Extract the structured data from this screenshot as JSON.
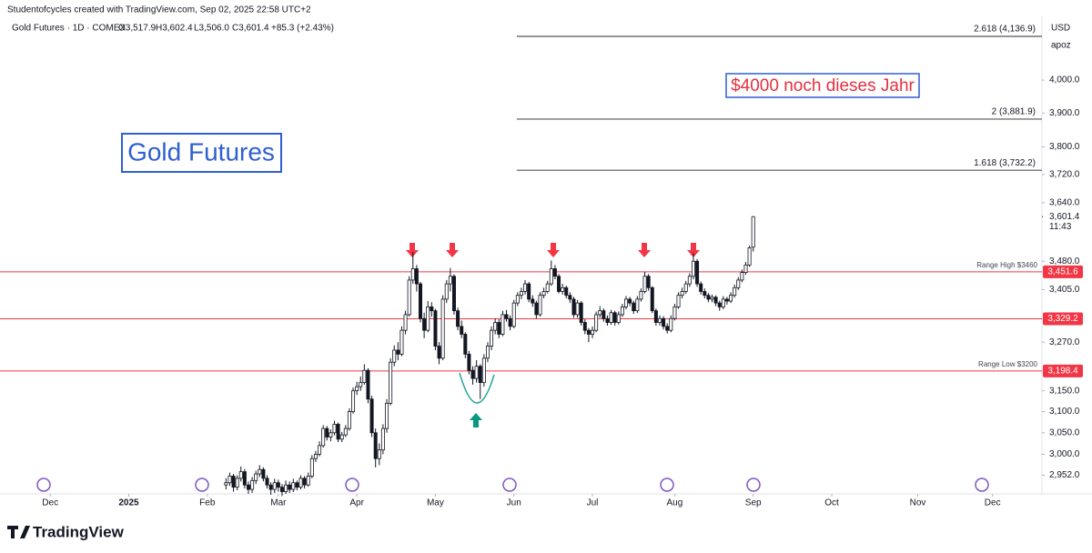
{
  "header": {
    "credit": "Studentofcycles created with TradingView.com, Sep 02, 2025 22:58 UTC+2",
    "symbol": "Gold Futures · 1D · COMEX",
    "ohlc": [
      "O3,517.9",
      "H3,602.4",
      "L3,506.0",
      "C3,601.4"
    ],
    "change": "+85.3 (+2.43%)",
    "currency": "USD",
    "account": "apoz"
  },
  "brand": "TradingView",
  "chart_data": {
    "type": "candlestick",
    "log_scale": true,
    "up_color": "#ffffff",
    "down_color": "#131722",
    "wick_color": "#131722",
    "ylim": [
      2912,
      4201
    ],
    "xlim": [
      -11,
      264
    ],
    "yticks": [
      {
        "value": 4000,
        "label": "4,000.0"
      },
      {
        "value": 3900,
        "label": "3,900.0"
      },
      {
        "value": 3800,
        "label": "3,800.0"
      },
      {
        "value": 3720,
        "label": "3,720.0"
      },
      {
        "value": 3640,
        "label": "3,640.0"
      },
      {
        "value": 3480,
        "label": "3,480.0"
      },
      {
        "value": 3405,
        "label": "3,405.0"
      },
      {
        "value": 3270,
        "label": "3,270.0"
      },
      {
        "value": 3150,
        "label": "3,150.0"
      },
      {
        "value": 3100,
        "label": "3,100.0"
      },
      {
        "value": 3050,
        "label": "3,050.0"
      },
      {
        "value": 3000,
        "label": "3,000.0"
      },
      {
        "value": 2952,
        "label": "2,952.0"
      }
    ],
    "xticks": [
      {
        "value": 0,
        "label": "Dec"
      },
      {
        "value": 21,
        "label": "2025"
      },
      {
        "value": 42,
        "label": "Feb"
      },
      {
        "value": 61,
        "label": "Mar"
      },
      {
        "value": 82,
        "label": "Apr"
      },
      {
        "value": 103,
        "label": "May"
      },
      {
        "value": 124,
        "label": "Jun"
      },
      {
        "value": 145,
        "label": "Jul"
      },
      {
        "value": 167,
        "label": "Aug"
      },
      {
        "value": 188,
        "label": "Sep"
      },
      {
        "value": 209,
        "label": "Oct"
      },
      {
        "value": 232,
        "label": "Nov"
      },
      {
        "value": 252,
        "label": "Dec"
      }
    ],
    "x": [
      47,
      48,
      49,
      50,
      51,
      52,
      53,
      54,
      55,
      56,
      57,
      58,
      59,
      60,
      61,
      62,
      63,
      64,
      65,
      66,
      67,
      68,
      69,
      70,
      71,
      72,
      73,
      74,
      75,
      76,
      77,
      78,
      79,
      80,
      81,
      82,
      83,
      84,
      85,
      86,
      87,
      88,
      89,
      90,
      91,
      92,
      93,
      94,
      95,
      96,
      97,
      98,
      99,
      100,
      101,
      102,
      103,
      104,
      105,
      106,
      107,
      108,
      109,
      110,
      111,
      112,
      113,
      114,
      115,
      116,
      117,
      118,
      119,
      120,
      121,
      122,
      123,
      124,
      125,
      126,
      127,
      128,
      129,
      130,
      131,
      132,
      133,
      134,
      135,
      136,
      137,
      138,
      139,
      140,
      141,
      142,
      143,
      144,
      145,
      146,
      147,
      148,
      149,
      150,
      151,
      152,
      153,
      154,
      155,
      156,
      157,
      158,
      159,
      160,
      161,
      162,
      163,
      164,
      165,
      166,
      167,
      168,
      169,
      170,
      171,
      172,
      173,
      174,
      175,
      176,
      177,
      178,
      179,
      180,
      181,
      182,
      183,
      184,
      185,
      186,
      187,
      188
    ],
    "ohlc": [
      [
        2930,
        2945,
        2920,
        2935
      ],
      [
        2935,
        2958,
        2928,
        2950
      ],
      [
        2950,
        2955,
        2915,
        2925
      ],
      [
        2925,
        2952,
        2918,
        2945
      ],
      [
        2945,
        2972,
        2938,
        2960
      ],
      [
        2960,
        2966,
        2922,
        2930
      ],
      [
        2930,
        2938,
        2910,
        2920
      ],
      [
        2920,
        2948,
        2912,
        2940
      ],
      [
        2940,
        2962,
        2932,
        2955
      ],
      [
        2955,
        2975,
        2948,
        2965
      ],
      [
        2965,
        2970,
        2938,
        2945
      ],
      [
        2945,
        2952,
        2922,
        2930
      ],
      [
        2930,
        2936,
        2908,
        2920
      ],
      [
        2920,
        2944,
        2912,
        2935
      ],
      [
        2935,
        2942,
        2915,
        2925
      ],
      [
        2925,
        2932,
        2905,
        2915
      ],
      [
        2915,
        2940,
        2910,
        2930
      ],
      [
        2930,
        2938,
        2912,
        2920
      ],
      [
        2920,
        2944,
        2914,
        2935
      ],
      [
        2935,
        2940,
        2918,
        2925
      ],
      [
        2925,
        2952,
        2920,
        2945
      ],
      [
        2945,
        2950,
        2922,
        2930
      ],
      [
        2930,
        2958,
        2926,
        2950
      ],
      [
        2950,
        2998,
        2945,
        2990
      ],
      [
        2990,
        3008,
        2982,
        3000
      ],
      [
        3000,
        3030,
        2995,
        3020
      ],
      [
        3020,
        3068,
        3015,
        3060
      ],
      [
        3060,
        3066,
        3032,
        3040
      ],
      [
        3040,
        3058,
        3030,
        3050
      ],
      [
        3050,
        3078,
        3044,
        3070
      ],
      [
        3070,
        3074,
        3028,
        3035
      ],
      [
        3035,
        3052,
        3028,
        3045
      ],
      [
        3045,
        3068,
        3040,
        3060
      ],
      [
        3060,
        3108,
        3055,
        3100
      ],
      [
        3100,
        3158,
        3095,
        3150
      ],
      [
        3150,
        3172,
        3140,
        3160
      ],
      [
        3160,
        3185,
        3150,
        3170
      ],
      [
        3170,
        3215,
        3165,
        3200
      ],
      [
        3200,
        3205,
        3120,
        3130
      ],
      [
        3130,
        3138,
        3040,
        3050
      ],
      [
        3050,
        3060,
        2970,
        2990
      ],
      [
        2990,
        3025,
        2975,
        3010
      ],
      [
        3010,
        3070,
        3000,
        3060
      ],
      [
        3060,
        3130,
        3050,
        3120
      ],
      [
        3120,
        3230,
        3115,
        3220
      ],
      [
        3220,
        3262,
        3210,
        3250
      ],
      [
        3250,
        3270,
        3225,
        3240
      ],
      [
        3240,
        3310,
        3235,
        3300
      ],
      [
        3300,
        3350,
        3290,
        3340
      ],
      [
        3340,
        3440,
        3335,
        3430
      ],
      [
        3430,
        3505,
        3420,
        3460
      ],
      [
        3460,
        3470,
        3400,
        3420
      ],
      [
        3420,
        3425,
        3320,
        3330
      ],
      [
        3330,
        3345,
        3280,
        3300
      ],
      [
        3300,
        3375,
        3295,
        3360
      ],
      [
        3360,
        3372,
        3335,
        3350
      ],
      [
        3350,
        3355,
        3250,
        3260
      ],
      [
        3260,
        3270,
        3215,
        3230
      ],
      [
        3230,
        3390,
        3225,
        3380
      ],
      [
        3380,
        3430,
        3370,
        3420
      ],
      [
        3420,
        3462,
        3400,
        3440
      ],
      [
        3440,
        3445,
        3340,
        3350
      ],
      [
        3350,
        3358,
        3300,
        3310
      ],
      [
        3310,
        3325,
        3280,
        3290
      ],
      [
        3290,
        3295,
        3230,
        3240
      ],
      [
        3240,
        3248,
        3190,
        3200
      ],
      [
        3200,
        3210,
        3165,
        3180
      ],
      [
        3180,
        3225,
        3170,
        3210
      ],
      [
        3210,
        3215,
        3130,
        3170
      ],
      [
        3170,
        3240,
        3160,
        3230
      ],
      [
        3230,
        3270,
        3220,
        3260
      ],
      [
        3260,
        3310,
        3250,
        3300
      ],
      [
        3300,
        3330,
        3290,
        3320
      ],
      [
        3320,
        3328,
        3280,
        3290
      ],
      [
        3290,
        3350,
        3285,
        3340
      ],
      [
        3340,
        3352,
        3322,
        3330
      ],
      [
        3330,
        3338,
        3300,
        3310
      ],
      [
        3310,
        3378,
        3305,
        3370
      ],
      [
        3370,
        3398,
        3362,
        3390
      ],
      [
        3390,
        3410,
        3380,
        3400
      ],
      [
        3400,
        3430,
        3392,
        3420
      ],
      [
        3420,
        3425,
        3372,
        3380
      ],
      [
        3380,
        3390,
        3360,
        3370
      ],
      [
        3370,
        3376,
        3330,
        3340
      ],
      [
        3340,
        3398,
        3335,
        3390
      ],
      [
        3390,
        3410,
        3382,
        3400
      ],
      [
        3400,
        3428,
        3395,
        3420
      ],
      [
        3420,
        3482,
        3415,
        3460
      ],
      [
        3460,
        3470,
        3432,
        3440
      ],
      [
        3440,
        3446,
        3395,
        3400
      ],
      [
        3400,
        3420,
        3392,
        3410
      ],
      [
        3410,
        3415,
        3382,
        3390
      ],
      [
        3390,
        3398,
        3370,
        3380
      ],
      [
        3380,
        3386,
        3332,
        3340
      ],
      [
        3340,
        3378,
        3332,
        3370
      ],
      [
        3370,
        3375,
        3312,
        3320
      ],
      [
        3320,
        3328,
        3290,
        3300
      ],
      [
        3300,
        3306,
        3270,
        3290
      ],
      [
        3290,
        3310,
        3280,
        3300
      ],
      [
        3300,
        3348,
        3295,
        3340
      ],
      [
        3340,
        3362,
        3332,
        3350
      ],
      [
        3350,
        3356,
        3322,
        3330
      ],
      [
        3330,
        3338,
        3312,
        3320
      ],
      [
        3320,
        3352,
        3314,
        3345
      ],
      [
        3345,
        3350,
        3312,
        3320
      ],
      [
        3320,
        3348,
        3315,
        3340
      ],
      [
        3340,
        3368,
        3334,
        3360
      ],
      [
        3360,
        3388,
        3354,
        3380
      ],
      [
        3380,
        3386,
        3362,
        3370
      ],
      [
        3370,
        3376,
        3342,
        3350
      ],
      [
        3350,
        3388,
        3344,
        3380
      ],
      [
        3380,
        3408,
        3374,
        3400
      ],
      [
        3400,
        3452,
        3395,
        3440
      ],
      [
        3440,
        3446,
        3402,
        3410
      ],
      [
        3410,
        3414,
        3344,
        3350
      ],
      [
        3350,
        3356,
        3312,
        3320
      ],
      [
        3320,
        3338,
        3312,
        3330
      ],
      [
        3330,
        3336,
        3302,
        3310
      ],
      [
        3310,
        3318,
        3292,
        3300
      ],
      [
        3300,
        3338,
        3295,
        3330
      ],
      [
        3330,
        3368,
        3325,
        3360
      ],
      [
        3360,
        3398,
        3355,
        3390
      ],
      [
        3390,
        3410,
        3382,
        3400
      ],
      [
        3400,
        3428,
        3394,
        3420
      ],
      [
        3420,
        3448,
        3412,
        3440
      ],
      [
        3440,
        3502,
        3432,
        3480
      ],
      [
        3480,
        3486,
        3412,
        3420
      ],
      [
        3420,
        3426,
        3392,
        3400
      ],
      [
        3400,
        3408,
        3382,
        3390
      ],
      [
        3390,
        3396,
        3372,
        3380
      ],
      [
        3380,
        3392,
        3372,
        3385
      ],
      [
        3385,
        3390,
        3362,
        3370
      ],
      [
        3370,
        3376,
        3350,
        3360
      ],
      [
        3360,
        3388,
        3354,
        3380
      ],
      [
        3380,
        3386,
        3366,
        3375
      ],
      [
        3375,
        3398,
        3370,
        3390
      ],
      [
        3390,
        3418,
        3384,
        3410
      ],
      [
        3410,
        3438,
        3404,
        3430
      ],
      [
        3430,
        3458,
        3424,
        3450
      ],
      [
        3450,
        3478,
        3444,
        3470
      ],
      [
        3470,
        3522,
        3465,
        3516
      ],
      [
        3517.9,
        3602.4,
        3506.0,
        3601.4
      ]
    ],
    "last_price": {
      "value": 3601.4,
      "label": "3,601.4",
      "countdown": "11:43"
    },
    "levels": [
      {
        "value": 3451.6,
        "label": "3,451.6",
        "note": "Range High $3460"
      },
      {
        "value": 3329.2,
        "label": "3,329.2"
      },
      {
        "value": 3198.4,
        "label": "3,198.4",
        "note": "Range Low $3200"
      }
    ],
    "level_color": "#f23645",
    "fib_levels": [
      {
        "value": 4136.9,
        "label": "2.618 (4,136.9)"
      },
      {
        "value": 3881.9,
        "label": "2 (3,881.9)"
      },
      {
        "value": 3732.2,
        "label": "1.618 (3,732.2)"
      }
    ],
    "annotations": [
      "Gold Futures",
      "$4000 noch dieses Jahr"
    ]
  }
}
